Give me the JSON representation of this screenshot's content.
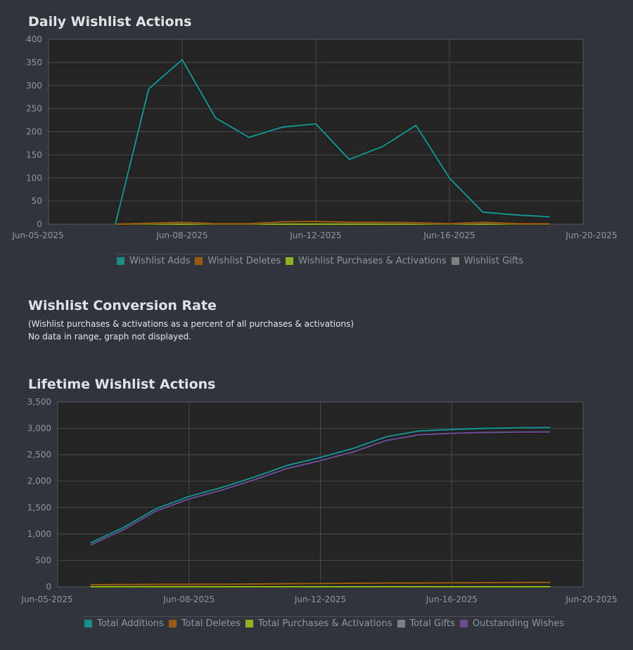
{
  "sections": {
    "daily_title": "Daily Wishlist Actions",
    "conversion_title": "Wishlist Conversion Rate",
    "conversion_subtitle": "(Wishlist purchases & activations as a percent of all purchases & activations)",
    "conversion_note": "No data in range, graph not displayed.",
    "lifetime_title": "Lifetime Wishlist Actions"
  },
  "colors": {
    "background": "#31343c",
    "plot_background": "#242424",
    "grid": "#4a4a4a",
    "adds": "#1a8c8a",
    "deletes": "#9a5a14",
    "purchases": "#8fb21f",
    "gifts": "#7f7f7f",
    "outstanding": "#6a4d8c"
  },
  "chart_data": [
    {
      "type": "line",
      "title": "Daily Wishlist Actions",
      "x_ticks": [
        "Jun-05-2025",
        "Jun-08-2025",
        "Jun-12-2025",
        "Jun-16-2025",
        "Jun-20-2025"
      ],
      "y_ticks": [
        "0",
        "50",
        "100",
        "150",
        "200",
        "250",
        "300",
        "350",
        "400"
      ],
      "xlim": [
        "2025-06-04",
        "2025-06-20"
      ],
      "ylim": [
        0,
        400
      ],
      "grid": true,
      "legend_position": "bottom",
      "x": [
        "2025-06-06",
        "2025-06-07",
        "2025-06-08",
        "2025-06-09",
        "2025-06-10",
        "2025-06-11",
        "2025-06-12",
        "2025-06-13",
        "2025-06-14",
        "2025-06-15",
        "2025-06-16",
        "2025-06-17",
        "2025-06-18",
        "2025-06-19"
      ],
      "series": [
        {
          "name": "Wishlist Adds",
          "color": "#1a8c8a",
          "values": [
            0,
            293,
            356,
            230,
            188,
            210,
            217,
            140,
            168,
            214,
            100,
            26,
            20,
            16
          ]
        },
        {
          "name": "Wishlist Deletes",
          "color": "#9a5a14",
          "values": [
            0,
            2,
            4,
            1,
            1,
            5,
            6,
            4,
            4,
            3,
            1,
            4,
            1,
            1
          ]
        },
        {
          "name": "Wishlist Purchases & Activations",
          "color": "#8fb21f",
          "values": [
            0,
            0,
            0,
            0,
            0,
            0,
            0,
            0,
            0,
            0,
            0,
            0,
            0,
            0
          ]
        },
        {
          "name": "Wishlist Gifts",
          "color": "#7f7f7f",
          "values": [
            0,
            0,
            0,
            0,
            0,
            0,
            0,
            0,
            0,
            0,
            0,
            0,
            0,
            0
          ]
        }
      ]
    },
    {
      "type": "line",
      "title": "Lifetime Wishlist Actions",
      "x_ticks": [
        "Jun-05-2025",
        "Jun-08-2025",
        "Jun-12-2025",
        "Jun-16-2025",
        "Jun-20-2025"
      ],
      "y_ticks": [
        "0",
        "500",
        "1,000",
        "1,500",
        "2,000",
        "2,500",
        "3,000",
        "3,500"
      ],
      "xlim": [
        "2025-06-04",
        "2025-06-20"
      ],
      "ylim": [
        0,
        3500
      ],
      "grid": true,
      "legend_position": "bottom",
      "x": [
        "2025-06-05",
        "2025-06-06",
        "2025-06-07",
        "2025-06-08",
        "2025-06-09",
        "2025-06-10",
        "2025-06-11",
        "2025-06-12",
        "2025-06-13",
        "2025-06-14",
        "2025-06-15",
        "2025-06-16",
        "2025-06-17",
        "2025-06-18",
        "2025-06-19"
      ],
      "series": [
        {
          "name": "Total Additions",
          "color": "#1a8c8a",
          "values": [
            830,
            1120,
            1480,
            1710,
            1880,
            2080,
            2300,
            2450,
            2620,
            2840,
            2950,
            2980,
            3000,
            3010,
            3015
          ]
        },
        {
          "name": "Total Deletes",
          "color": "#9a5a14",
          "values": [
            40,
            42,
            46,
            48,
            49,
            52,
            58,
            62,
            66,
            70,
            72,
            75,
            78,
            80,
            82
          ]
        },
        {
          "name": "Total Purchases & Activations",
          "color": "#8fb21f",
          "values": [
            0,
            0,
            0,
            0,
            0,
            0,
            0,
            0,
            0,
            0,
            0,
            0,
            0,
            0,
            0
          ]
        },
        {
          "name": "Total Gifts",
          "color": "#7f7f7f",
          "values": [
            0,
            0,
            0,
            0,
            0,
            0,
            0,
            0,
            0,
            0,
            0,
            0,
            0,
            0,
            0
          ]
        },
        {
          "name": "Outstanding Wishes",
          "color": "#6a4d8c",
          "values": [
            790,
            1078,
            1434,
            1662,
            1831,
            2028,
            2242,
            2388,
            2554,
            2770,
            2878,
            2905,
            2922,
            2930,
            2933
          ]
        }
      ]
    }
  ]
}
